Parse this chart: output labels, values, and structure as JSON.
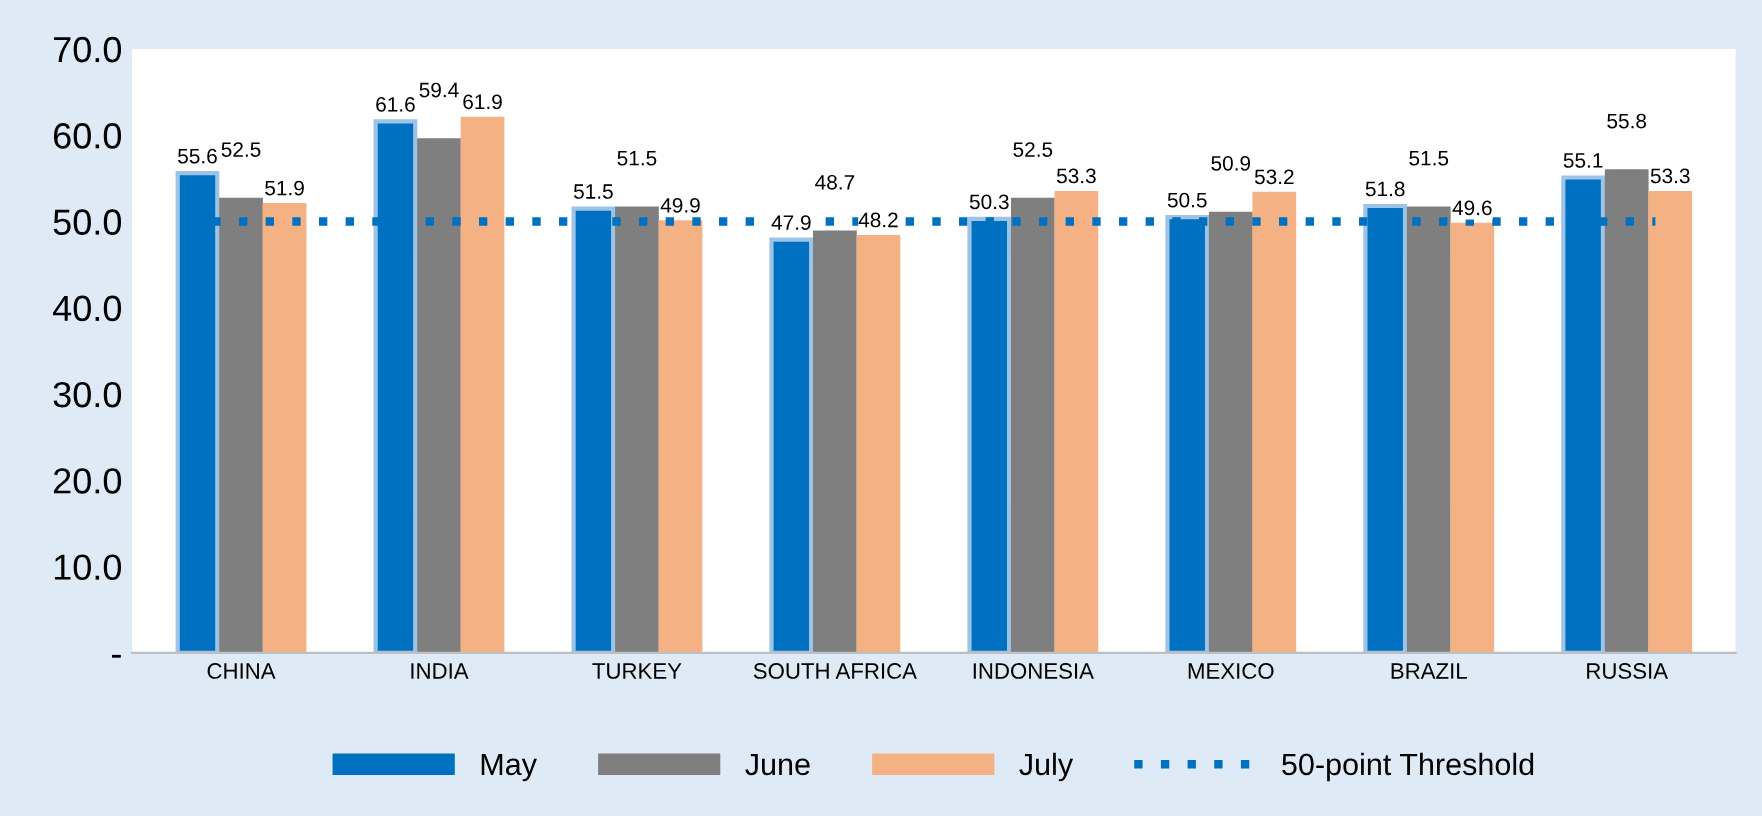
{
  "chart_data": {
    "type": "bar",
    "categories": [
      "CHINA",
      "INDIA",
      "TURKEY",
      "SOUTH AFRICA",
      "INDONESIA",
      "MEXICO",
      "BRAZIL",
      "RUSSIA"
    ],
    "series": [
      {
        "name": "May",
        "color": "#0070c0",
        "values": [
          55.6,
          61.6,
          51.5,
          47.9,
          50.3,
          50.5,
          51.8,
          55.1
        ]
      },
      {
        "name": "June",
        "color": "#7f7f7f",
        "values": [
          52.5,
          59.4,
          51.5,
          48.7,
          52.5,
          50.9,
          51.5,
          55.8
        ]
      },
      {
        "name": "July",
        "color": "#f4b183",
        "values": [
          51.9,
          61.9,
          49.9,
          48.2,
          53.3,
          53.2,
          49.6,
          53.3
        ]
      }
    ],
    "ylim": [
      0,
      70
    ],
    "yticks": [
      {
        "value": 0,
        "label": "-"
      },
      {
        "value": 10,
        "label": "10.0"
      },
      {
        "value": 20,
        "label": "20.0"
      },
      {
        "value": 30,
        "label": "30.0"
      },
      {
        "value": 40,
        "label": "40.0"
      },
      {
        "value": 50,
        "label": "50.0"
      },
      {
        "value": 60,
        "label": "60.0"
      },
      {
        "value": 70,
        "label": "70.0"
      }
    ],
    "ref_lines": [
      {
        "axis": "y",
        "value": 50,
        "label": "50-point Threshold",
        "color": "#0070c0",
        "line_style": "dotted"
      }
    ],
    "data_labels": true,
    "grid": false,
    "legend": "bottom"
  }
}
